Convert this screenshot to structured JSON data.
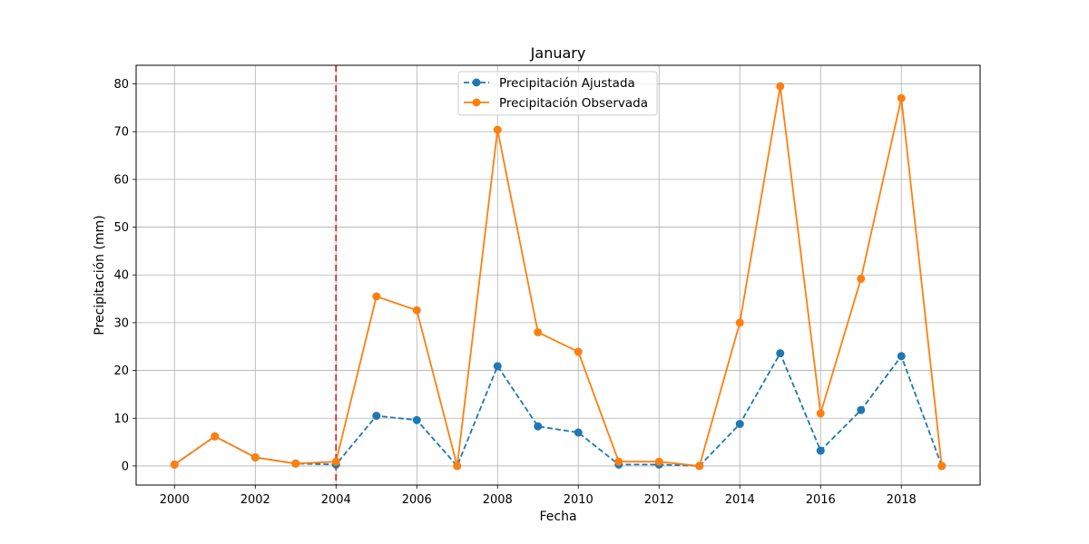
{
  "chart_data": {
    "type": "line",
    "title": "January",
    "xlabel": "Fecha",
    "ylabel": "Precipitación (mm)",
    "xlim": [
      1999.05,
      2019.95
    ],
    "ylim": [
      -4,
      83.9
    ],
    "x_ticks": [
      "2000",
      "2002",
      "2004",
      "2006",
      "2008",
      "2010",
      "2012",
      "2014",
      "2016",
      "2018"
    ],
    "x_tick_values": [
      2000,
      2002,
      2004,
      2006,
      2008,
      2010,
      2012,
      2014,
      2016,
      2018
    ],
    "y_ticks": [
      "0",
      "10",
      "20",
      "30",
      "40",
      "50",
      "60",
      "70",
      "80"
    ],
    "y_tick_values": [
      0,
      10,
      20,
      30,
      40,
      50,
      60,
      70,
      80
    ],
    "grid": true,
    "legend_position": "top-center",
    "x": [
      2000,
      2001,
      2002,
      2003,
      2004,
      2005,
      2006,
      2007,
      2008,
      2009,
      2010,
      2011,
      2012,
      2013,
      2014,
      2015,
      2016,
      2017,
      2018,
      2019
    ],
    "series": [
      {
        "name": "Precipitación Ajustada",
        "color": "#1f77b4",
        "style": "dashed",
        "marker": "circle",
        "values": [
          0.3,
          6.2,
          1.8,
          0.5,
          0.3,
          10.5,
          9.6,
          0.0,
          20.9,
          8.3,
          7.0,
          0.3,
          0.3,
          0.0,
          8.8,
          23.6,
          3.2,
          11.7,
          23.0,
          0.0
        ]
      },
      {
        "name": "Precipitación Observada",
        "color": "#ff7f0e",
        "style": "solid",
        "marker": "circle",
        "values": [
          0.3,
          6.2,
          1.8,
          0.5,
          0.9,
          35.5,
          32.6,
          0.0,
          70.4,
          28.0,
          23.9,
          0.9,
          0.9,
          0.0,
          30.0,
          79.5,
          11.0,
          39.2,
          77.0,
          0.0
        ]
      }
    ],
    "vline": {
      "x": 2004,
      "color": "#d62728",
      "style": "dashed"
    }
  }
}
